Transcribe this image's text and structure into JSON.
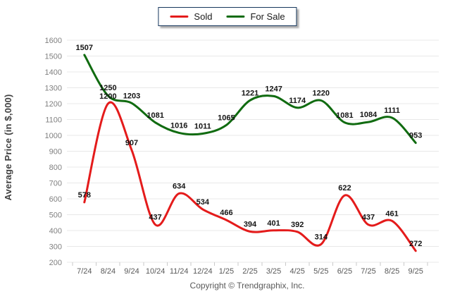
{
  "legend": {
    "items": [
      {
        "label": "Sold",
        "color": "#e41b1b"
      },
      {
        "label": "For Sale",
        "color": "#106b10"
      }
    ]
  },
  "footer": "Copyright © Trendgraphix, Inc.",
  "chart_data": {
    "type": "line",
    "ylabel": "Average Price (in $,000)",
    "categories": [
      "7/24",
      "8/24",
      "9/24",
      "10/24",
      "11/24",
      "12/24",
      "1/25",
      "2/25",
      "3/25",
      "4/25",
      "5/25",
      "6/25",
      "7/25",
      "8/25",
      "9/25"
    ],
    "series": [
      {
        "name": "Sold",
        "color": "#e41b1b",
        "values": [
          578,
          1200,
          907,
          437,
          634,
          534,
          466,
          394,
          401,
          392,
          314,
          622,
          437,
          461,
          272
        ]
      },
      {
        "name": "For Sale",
        "color": "#106b10",
        "values": [
          1507,
          1250,
          1203,
          1081,
          1016,
          1011,
          1065,
          1221,
          1247,
          1174,
          1220,
          1081,
          1084,
          1111,
          953
        ]
      }
    ],
    "ylim": [
      200,
      1600
    ],
    "ytick_step": 100,
    "grid": true,
    "legend_position": "top-center",
    "point_labels": true
  }
}
